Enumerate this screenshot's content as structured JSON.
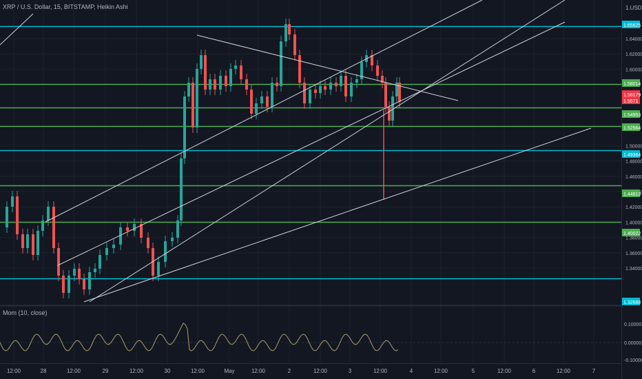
{
  "header": {
    "symbol_title": "XRP / U.S. Dollar, 15, BITSTAMP, Heikin Ashi"
  },
  "momentum": {
    "label": "Mom (10, close)",
    "ticks": [
      "0.10000",
      "0.00000",
      "-0.10000"
    ]
  },
  "price_axis": {
    "top_label": "1.USD",
    "ticks": [
      "1.64000",
      "1.62000",
      "1.60000",
      "1.50000",
      "1.48000",
      "1.46000",
      "1.44000",
      "1.42000",
      "1.40000",
      "1.38000",
      "1.36000",
      "1.34000"
    ]
  },
  "price_badges": [
    {
      "value": "1.65625",
      "color": "#00bcd4"
    },
    {
      "value": "1.58014",
      "color": "#4caf50"
    },
    {
      "value": "1.56179",
      "color": "#f23645"
    },
    {
      "value": "1.5571",
      "color": "#f23645"
    },
    {
      "value": "1.54953",
      "color": "#4caf50"
    },
    {
      "value": "1.52564",
      "color": "#4caf50"
    },
    {
      "value": "1.49364",
      "color": "#00bcd4"
    },
    {
      "value": "1.44813",
      "color": "#4caf50"
    },
    {
      "value": "1.40022",
      "color": "#4caf50"
    },
    {
      "value": "1.32688",
      "color": "#00bcd4"
    }
  ],
  "time_axis": {
    "labels": [
      "12:00",
      "28",
      "12:00",
      "29",
      "12:00",
      "30",
      "12:00",
      "May",
      "12:00",
      "2",
      "12:00",
      "3",
      "12:00",
      "4",
      "12:00",
      "5",
      "12:00",
      "6",
      "12:00",
      "7"
    ]
  },
  "horizontal_levels": [
    {
      "price": 1.65625,
      "color": "#00bcd4"
    },
    {
      "price": 1.58014,
      "color": "#4caf50"
    },
    {
      "price": 1.54953,
      "color": "#4caf50"
    },
    {
      "price": 1.52564,
      "color": "#4caf50"
    },
    {
      "price": 1.49364,
      "color": "#00bcd4"
    },
    {
      "price": 1.44813,
      "color": "#4caf50"
    },
    {
      "price": 1.40022,
      "color": "#4caf50"
    },
    {
      "price": 1.32688,
      "color": "#00bcd4"
    }
  ],
  "colors": {
    "background": "#131722",
    "up": "#26a69a",
    "down": "#ef5350",
    "trendline": "#d1d4dc",
    "momentum": "#a89f6d"
  }
}
